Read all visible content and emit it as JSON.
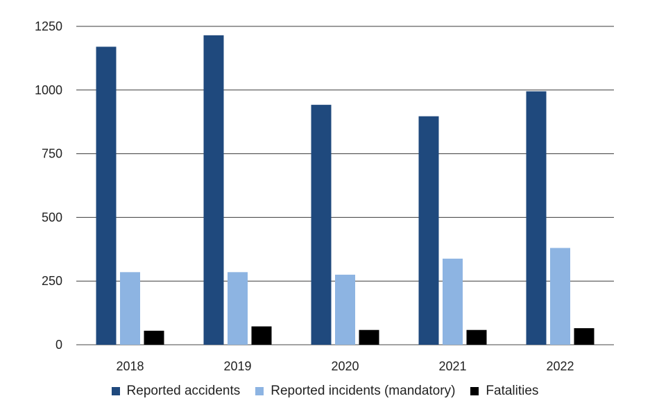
{
  "chart_data": {
    "type": "bar",
    "title": "",
    "xlabel": "",
    "ylabel": "",
    "categories": [
      "2018",
      "2019",
      "2020",
      "2021",
      "2022"
    ],
    "ylim": [
      0,
      1250
    ],
    "yticks": [
      0,
      250,
      500,
      750,
      1000,
      1250
    ],
    "grid": true,
    "legend_position": "bottom",
    "series": [
      {
        "name": "Reported accidents",
        "color": "#1f497d",
        "values": [
          1170,
          1215,
          942,
          897,
          995
        ]
      },
      {
        "name": "Reported incidents (mandatory)",
        "color": "#8db4e2",
        "values": [
          285,
          285,
          275,
          338,
          380
        ]
      },
      {
        "name": "Fatalities",
        "color": "#000000",
        "values": [
          55,
          72,
          58,
          58,
          65
        ]
      }
    ]
  }
}
